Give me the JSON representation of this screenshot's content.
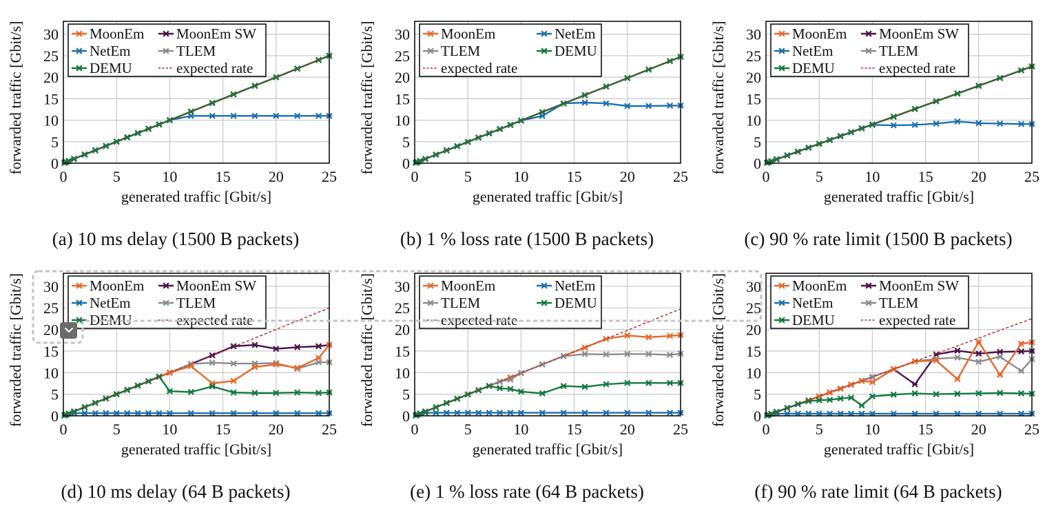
{
  "colors": {
    "MoonEm": "#e8692a",
    "MoonEm SW": "#4b1248",
    "NetEm": "#1b6fae",
    "TLEM": "#8c8c8c",
    "DEMU": "#137a3f",
    "expected rate": "#b3262f",
    "grid": "#c8c8c8",
    "overlay": "#c4c4c4",
    "button": "#6b6b6b"
  },
  "overlay": {
    "expand_button_icon": "chevron-down-icon"
  },
  "chart_data": [
    {
      "id": "a",
      "type": "line",
      "caption": "(a) 10 ms delay (1500 B packets)",
      "xlabel": "generated traffic [Gbit/s]",
      "ylabel": "forwarded traffic [Gbit/s]",
      "xlim": [
        0,
        25
      ],
      "ylim": [
        0,
        33
      ],
      "xticks": [
        0,
        5,
        10,
        15,
        20,
        25
      ],
      "yticks": [
        0,
        5,
        10,
        15,
        20,
        25,
        30
      ],
      "grid": true,
      "legend": {
        "position": "top-left",
        "columns": 2,
        "entries": [
          "MoonEm",
          "MoonEm SW",
          "NetEm",
          "TLEM",
          "DEMU",
          "expected rate"
        ]
      },
      "x": [
        0.1,
        0.25,
        0.5,
        1,
        2,
        3,
        4,
        5,
        6,
        7,
        8,
        9,
        10,
        12,
        14,
        16,
        18,
        20,
        22,
        24,
        25
      ],
      "series": [
        {
          "name": "MoonEm SW",
          "values": [
            0.1,
            0.25,
            0.5,
            1,
            2,
            3,
            4,
            5,
            6,
            7,
            8,
            9,
            10,
            12,
            14,
            16,
            18,
            20,
            22,
            24,
            25
          ]
        },
        {
          "name": "TLEM",
          "values": [
            0.1,
            0.25,
            0.5,
            1,
            2,
            3,
            4,
            5,
            6,
            7,
            8,
            9,
            10,
            12,
            14,
            16,
            18,
            20,
            22,
            24,
            25
          ]
        },
        {
          "name": "MoonEm",
          "values": [
            0.1,
            0.25,
            0.5,
            1,
            2,
            3,
            4,
            5,
            6,
            7,
            8,
            9,
            10,
            12,
            14,
            16,
            18,
            20,
            22,
            24,
            25
          ]
        },
        {
          "name": "NetEm",
          "values": [
            0.1,
            0.25,
            0.5,
            1,
            2,
            3,
            4,
            5,
            6,
            7,
            8,
            9,
            10,
            11,
            11,
            11,
            11,
            11,
            11,
            11,
            11
          ]
        },
        {
          "name": "DEMU",
          "values": [
            0.1,
            0.25,
            0.5,
            1,
            2,
            3,
            4,
            5,
            6,
            7,
            8,
            9,
            10,
            12,
            14,
            16,
            18,
            20,
            22,
            24,
            25
          ]
        }
      ],
      "expected": {
        "name": "expected rate",
        "factor": 1.0
      }
    },
    {
      "id": "b",
      "type": "line",
      "caption": "(b) 1 % loss rate (1500 B packets)",
      "xlabel": "generated traffic [Gbit/s]",
      "ylabel": "forwarded traffic [Gbit/s]",
      "xlim": [
        0,
        25
      ],
      "ylim": [
        0,
        33
      ],
      "xticks": [
        0,
        5,
        10,
        15,
        20,
        25
      ],
      "yticks": [
        0,
        5,
        10,
        15,
        20,
        25,
        30
      ],
      "grid": true,
      "legend": {
        "position": "top-left",
        "columns": 2,
        "entries": [
          "MoonEm",
          "NetEm",
          "TLEM",
          "DEMU",
          "expected rate"
        ]
      },
      "x": [
        0.1,
        0.25,
        0.5,
        1,
        2,
        3,
        4,
        5,
        6,
        7,
        8,
        9,
        10,
        12,
        14,
        16,
        18,
        20,
        22,
        24,
        25
      ],
      "series": [
        {
          "name": "TLEM",
          "values": [
            0.1,
            0.25,
            0.5,
            0.99,
            1.98,
            2.97,
            3.96,
            4.95,
            5.94,
            6.93,
            7.92,
            8.91,
            9.9,
            11.88,
            13.86,
            15.84,
            17.82,
            19.8,
            21.78,
            23.76,
            24.75
          ]
        },
        {
          "name": "MoonEm",
          "values": [
            0.1,
            0.25,
            0.5,
            0.99,
            1.98,
            2.97,
            3.96,
            4.95,
            5.94,
            6.93,
            7.92,
            8.91,
            9.9,
            11.88,
            13.86,
            15.84,
            17.82,
            19.8,
            21.78,
            23.76,
            24.75
          ]
        },
        {
          "name": "NetEm",
          "values": [
            0.1,
            0.25,
            0.5,
            0.99,
            1.98,
            2.97,
            3.96,
            4.95,
            5.94,
            6.93,
            7.92,
            8.91,
            9.9,
            11.0,
            13.9,
            14.1,
            13.9,
            13.3,
            13.3,
            13.4,
            13.4
          ]
        },
        {
          "name": "DEMU",
          "values": [
            0.1,
            0.25,
            0.5,
            0.99,
            1.98,
            2.97,
            3.96,
            4.95,
            5.94,
            6.93,
            7.92,
            8.91,
            9.9,
            11.88,
            13.86,
            15.84,
            17.82,
            19.8,
            21.78,
            23.76,
            24.75
          ]
        }
      ],
      "expected": {
        "name": "expected rate",
        "factor": 0.99
      }
    },
    {
      "id": "c",
      "type": "line",
      "caption": "(c) 90 % rate limit (1500 B packets)",
      "xlabel": "generated traffic [Gbit/s]",
      "ylabel": "forwarded traffic [Gbit/s]",
      "xlim": [
        0,
        25
      ],
      "ylim": [
        0,
        33
      ],
      "xticks": [
        0,
        5,
        10,
        15,
        20,
        25
      ],
      "yticks": [
        0,
        5,
        10,
        15,
        20,
        25,
        30
      ],
      "grid": true,
      "legend": {
        "position": "top-left",
        "columns": 2,
        "entries": [
          "MoonEm",
          "MoonEm SW",
          "NetEm",
          "TLEM",
          "DEMU",
          "expected rate"
        ]
      },
      "x": [
        0.1,
        0.25,
        0.5,
        1,
        2,
        3,
        4,
        5,
        6,
        7,
        8,
        9,
        10,
        12,
        14,
        16,
        18,
        20,
        22,
        24,
        25
      ],
      "series": [
        {
          "name": "MoonEm SW",
          "values": [
            0.09,
            0.23,
            0.45,
            0.9,
            1.8,
            2.7,
            3.6,
            4.5,
            5.4,
            6.3,
            7.2,
            8.1,
            9.0,
            10.8,
            12.6,
            14.4,
            16.2,
            18.0,
            19.8,
            21.6,
            22.5
          ]
        },
        {
          "name": "TLEM",
          "values": [
            0.09,
            0.23,
            0.45,
            0.9,
            1.8,
            2.7,
            3.6,
            4.5,
            5.4,
            6.3,
            7.2,
            8.1,
            9.0,
            10.8,
            12.6,
            14.4,
            16.2,
            18.0,
            19.8,
            21.6,
            22.5
          ]
        },
        {
          "name": "MoonEm",
          "values": [
            0.09,
            0.23,
            0.45,
            0.9,
            1.8,
            2.7,
            3.6,
            4.5,
            5.4,
            6.3,
            7.2,
            8.1,
            9.0,
            10.8,
            12.6,
            14.4,
            16.2,
            18.0,
            19.8,
            21.6,
            22.5
          ]
        },
        {
          "name": "NetEm",
          "values": [
            0.09,
            0.23,
            0.45,
            0.9,
            1.8,
            2.7,
            3.6,
            4.5,
            5.4,
            6.3,
            7.2,
            8.1,
            8.9,
            8.8,
            8.9,
            9.2,
            9.7,
            9.3,
            9.2,
            9.1,
            9.1
          ]
        },
        {
          "name": "DEMU",
          "values": [
            0.09,
            0.23,
            0.45,
            0.9,
            1.8,
            2.7,
            3.6,
            4.5,
            5.4,
            6.3,
            7.2,
            8.1,
            9.0,
            10.8,
            12.6,
            14.4,
            16.2,
            18.0,
            19.8,
            21.6,
            22.5
          ]
        }
      ],
      "expected": {
        "name": "expected rate",
        "factor": 0.9
      }
    },
    {
      "id": "d",
      "type": "line",
      "caption": "(d) 10 ms delay (64 B packets)",
      "xlabel": "generated traffic [Gbit/s]",
      "ylabel": "forwarded traffic [Gbit/s]",
      "xlim": [
        0,
        25
      ],
      "ylim": [
        0,
        33
      ],
      "xticks": [
        0,
        5,
        10,
        15,
        20,
        25
      ],
      "yticks": [
        0,
        5,
        10,
        15,
        20,
        25,
        30
      ],
      "grid": true,
      "legend": {
        "position": "top-left",
        "columns": 2,
        "entries": [
          "MoonEm",
          "MoonEm SW",
          "NetEm",
          "TLEM",
          "DEMU",
          "expected rate"
        ]
      },
      "x": [
        0.1,
        0.25,
        0.5,
        1,
        2,
        3,
        4,
        5,
        6,
        7,
        8,
        9,
        10,
        12,
        14,
        16,
        18,
        20,
        22,
        24,
        25
      ],
      "series": [
        {
          "name": "MoonEm SW",
          "values": [
            0.1,
            0.25,
            0.5,
            1,
            2,
            3,
            4,
            5,
            6,
            7,
            8,
            9,
            10,
            12,
            14,
            16.1,
            16.4,
            15.5,
            15.9,
            16.1,
            16.4
          ]
        },
        {
          "name": "TLEM",
          "values": [
            0.1,
            0.25,
            0.5,
            1,
            2,
            3,
            4,
            5,
            6,
            7,
            8,
            9,
            10,
            12,
            12.3,
            12.1,
            12.1,
            12.2,
            10.9,
            12.4,
            12.4
          ]
        },
        {
          "name": "MoonEm",
          "values": [
            0.1,
            0.25,
            0.5,
            1,
            2,
            3,
            4,
            5,
            6,
            7,
            8,
            9,
            10,
            11.5,
            7.5,
            8.1,
            11.3,
            11.9,
            11.1,
            13.4,
            16.4
          ]
        },
        {
          "name": "NetEm",
          "values": [
            0.1,
            0.25,
            0.5,
            0.6,
            0.6,
            0.6,
            0.6,
            0.6,
            0.6,
            0.6,
            0.6,
            0.6,
            0.6,
            0.6,
            0.6,
            0.6,
            0.6,
            0.6,
            0.6,
            0.6,
            0.6
          ]
        },
        {
          "name": "DEMU",
          "values": [
            0.1,
            0.25,
            0.5,
            1,
            2,
            3,
            4,
            5,
            6,
            7,
            8,
            9.1,
            5.7,
            5.5,
            6.8,
            5.4,
            5.3,
            5.3,
            5.4,
            5.3,
            5.4
          ]
        }
      ],
      "expected": {
        "name": "expected rate",
        "factor": 1.0
      }
    },
    {
      "id": "e",
      "type": "line",
      "caption": "(e) 1 % loss rate (64 B packets)",
      "xlabel": "generated traffic [Gbit/s]",
      "ylabel": "forwarded traffic [Gbit/s]",
      "xlim": [
        0,
        25
      ],
      "ylim": [
        0,
        33
      ],
      "xticks": [
        0,
        5,
        10,
        15,
        20,
        25
      ],
      "yticks": [
        0,
        5,
        10,
        15,
        20,
        25,
        30
      ],
      "grid": true,
      "legend": {
        "position": "top-left",
        "columns": 2,
        "entries": [
          "MoonEm",
          "NetEm",
          "TLEM",
          "DEMU",
          "expected rate"
        ]
      },
      "x": [
        0.1,
        0.25,
        0.5,
        1,
        2,
        3,
        4,
        5,
        6,
        7,
        8,
        9,
        10,
        12,
        14,
        16,
        18,
        20,
        22,
        24,
        25
      ],
      "series": [
        {
          "name": "MoonEm",
          "values": [
            0.1,
            0.25,
            0.5,
            0.99,
            1.98,
            2.97,
            3.96,
            4.95,
            5.94,
            6.93,
            7.92,
            8.9,
            9.9,
            11.88,
            13.86,
            15.8,
            17.8,
            18.6,
            18.2,
            18.5,
            18.7
          ]
        },
        {
          "name": "TLEM",
          "values": [
            0.1,
            0.25,
            0.5,
            0.99,
            1.98,
            2.97,
            3.96,
            4.95,
            5.94,
            6.93,
            7.9,
            8.4,
            9.9,
            11.9,
            13.8,
            14.3,
            14.2,
            14.3,
            14.3,
            14.1,
            14.4
          ]
        },
        {
          "name": "NetEm",
          "values": [
            0.1,
            0.25,
            0.5,
            0.7,
            0.7,
            0.7,
            0.7,
            0.7,
            0.7,
            0.7,
            0.7,
            0.7,
            0.7,
            0.7,
            0.7,
            0.7,
            0.7,
            0.7,
            0.7,
            0.7,
            0.7
          ]
        },
        {
          "name": "DEMU",
          "values": [
            0.1,
            0.25,
            0.5,
            0.99,
            1.98,
            2.97,
            3.96,
            4.95,
            5.94,
            6.9,
            6.4,
            6.2,
            5.6,
            5.2,
            6.9,
            6.7,
            7.3,
            7.6,
            7.6,
            7.6,
            7.6
          ]
        }
      ],
      "expected": {
        "name": "expected rate",
        "factor": 0.99
      }
    },
    {
      "id": "f",
      "type": "line",
      "caption": "(f) 90 % rate limit (64 B packets)",
      "xlabel": "generated traffic [Gbit/s]",
      "ylabel": "forwarded traffic [Gbit/s]",
      "xlim": [
        0,
        25
      ],
      "ylim": [
        0,
        33
      ],
      "xticks": [
        0,
        5,
        10,
        15,
        20,
        25
      ],
      "yticks": [
        0,
        5,
        10,
        15,
        20,
        25,
        30
      ],
      "grid": true,
      "legend": {
        "position": "top-left",
        "columns": 2,
        "entries": [
          "MoonEm",
          "MoonEm SW",
          "NetEm",
          "TLEM",
          "DEMU",
          "expected rate"
        ]
      },
      "x": [
        0.1,
        0.25,
        0.5,
        1,
        2,
        3,
        4,
        5,
        6,
        7,
        8,
        9,
        10,
        12,
        14,
        16,
        18,
        20,
        22,
        24,
        25
      ],
      "series": [
        {
          "name": "MoonEm SW",
          "values": [
            0.09,
            0.23,
            0.45,
            0.9,
            1.8,
            2.7,
            3.6,
            4.5,
            5.4,
            6.3,
            7.2,
            8.1,
            9.0,
            10.8,
            7.3,
            14.2,
            15.1,
            14.4,
            14.8,
            14.9,
            15.0
          ]
        },
        {
          "name": "TLEM",
          "values": [
            0.09,
            0.23,
            0.45,
            0.9,
            1.8,
            2.7,
            3.6,
            4.5,
            5.4,
            6.3,
            7.2,
            8.1,
            9.0,
            10.8,
            12.6,
            13.2,
            13.5,
            12.5,
            13.7,
            10.4,
            13.1
          ]
        },
        {
          "name": "MoonEm",
          "values": [
            0.09,
            0.23,
            0.45,
            0.9,
            1.8,
            2.7,
            3.6,
            4.5,
            5.4,
            6.3,
            7.2,
            8.1,
            7.8,
            10.8,
            12.6,
            12.8,
            8.5,
            17.1,
            9.5,
            16.7,
            17.0
          ]
        },
        {
          "name": "NetEm",
          "values": [
            0.09,
            0.23,
            0.45,
            0.5,
            0.5,
            0.5,
            0.5,
            0.5,
            0.5,
            0.5,
            0.5,
            0.5,
            0.5,
            0.5,
            0.5,
            0.5,
            0.5,
            0.5,
            0.5,
            0.5,
            0.5
          ]
        },
        {
          "name": "DEMU",
          "values": [
            0.09,
            0.23,
            0.45,
            0.9,
            1.8,
            2.7,
            3.4,
            3.6,
            3.7,
            4.0,
            4.2,
            2.4,
            4.5,
            4.9,
            5.2,
            5.0,
            5.1,
            5.2,
            5.3,
            5.2,
            5.1
          ]
        }
      ],
      "expected": {
        "name": "expected rate",
        "factor": 0.9
      }
    }
  ]
}
